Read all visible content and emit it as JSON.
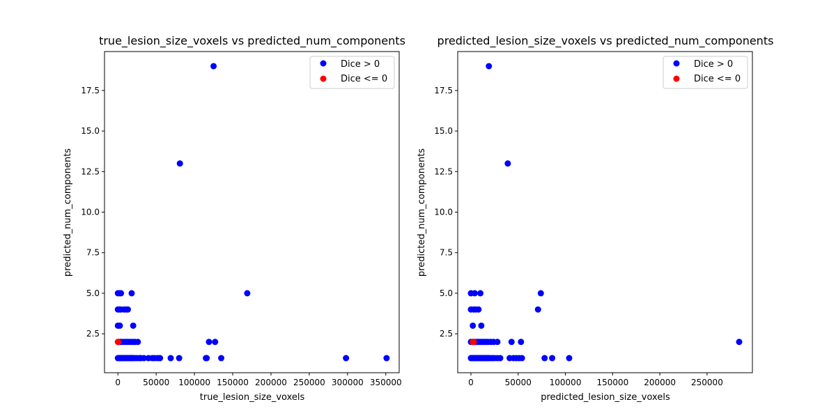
{
  "chart_data": [
    {
      "type": "scatter",
      "title": "true_lesion_size_voxels vs predicted_num_components",
      "xlabel": "true_lesion_size_voxels",
      "ylabel": "predicted_num_components",
      "xlim": [
        -17500,
        367500
      ],
      "ylim": [
        0.1,
        19.9
      ],
      "xticks": [
        0,
        50000,
        100000,
        150000,
        200000,
        250000,
        300000,
        350000
      ],
      "yticks": [
        2.5,
        5.0,
        7.5,
        10.0,
        12.5,
        15.0,
        17.5
      ],
      "legend_position": "upper right",
      "series": [
        {
          "name": "Dice > 0",
          "color": "#0000ff",
          "points": [
            [
              125000,
              19
            ],
            [
              81000,
              13
            ],
            [
              169000,
              5
            ],
            [
              0,
              5
            ],
            [
              2000,
              5
            ],
            [
              4000,
              5
            ],
            [
              18000,
              5
            ],
            [
              0,
              4
            ],
            [
              2000,
              4
            ],
            [
              4000,
              4
            ],
            [
              8000,
              4
            ],
            [
              11000,
              4
            ],
            [
              13000,
              4
            ],
            [
              0,
              3
            ],
            [
              2500,
              3
            ],
            [
              20000,
              3
            ],
            [
              500,
              2
            ],
            [
              3000,
              2
            ],
            [
              5000,
              2
            ],
            [
              8000,
              2
            ],
            [
              11000,
              2
            ],
            [
              13000,
              2
            ],
            [
              16000,
              2
            ],
            [
              19000,
              2
            ],
            [
              22000,
              2
            ],
            [
              26000,
              2
            ],
            [
              119000,
              2
            ],
            [
              127000,
              2
            ],
            [
              0,
              1
            ],
            [
              1000,
              1
            ],
            [
              2000,
              1
            ],
            [
              3000,
              1
            ],
            [
              4000,
              1
            ],
            [
              5000,
              1
            ],
            [
              6000,
              1
            ],
            [
              7000,
              1
            ],
            [
              8000,
              1
            ],
            [
              9000,
              1
            ],
            [
              10000,
              1
            ],
            [
              11000,
              1
            ],
            [
              12000,
              1
            ],
            [
              13000,
              1
            ],
            [
              14000,
              1
            ],
            [
              15000,
              1
            ],
            [
              16000,
              1
            ],
            [
              17000,
              1
            ],
            [
              18000,
              1
            ],
            [
              19000,
              1
            ],
            [
              20000,
              1
            ],
            [
              22000,
              1
            ],
            [
              25000,
              1
            ],
            [
              28000,
              1
            ],
            [
              30000,
              1
            ],
            [
              34000,
              1
            ],
            [
              40000,
              1
            ],
            [
              45000,
              1
            ],
            [
              48000,
              1
            ],
            [
              52000,
              1
            ],
            [
              55000,
              1
            ],
            [
              69000,
              1
            ],
            [
              80000,
              1
            ],
            [
              115000,
              1
            ],
            [
              116000,
              1
            ],
            [
              135000,
              1
            ],
            [
              298000,
              1
            ],
            [
              351000,
              1
            ]
          ]
        },
        {
          "name": "Dice <= 0",
          "color": "#ff0000",
          "points": [
            [
              0,
              2
            ],
            [
              500,
              2
            ]
          ]
        }
      ]
    },
    {
      "type": "scatter",
      "title": "predicted_lesion_size_voxels vs predicted_num_components",
      "xlabel": "predicted_lesion_size_voxels",
      "ylabel": "predicted_num_components",
      "xlim": [
        -14000,
        298000
      ],
      "ylim": [
        0.1,
        19.9
      ],
      "xticks": [
        0,
        50000,
        100000,
        150000,
        200000,
        250000
      ],
      "yticks": [
        2.5,
        5.0,
        7.5,
        10.0,
        12.5,
        15.0,
        17.5
      ],
      "legend_position": "upper right",
      "series": [
        {
          "name": "Dice > 0",
          "color": "#0000ff",
          "points": [
            [
              19000,
              19
            ],
            [
              39000,
              13
            ],
            [
              74000,
              5
            ],
            [
              71000,
              4
            ],
            [
              0,
              5
            ],
            [
              4000,
              5
            ],
            [
              10000,
              5
            ],
            [
              0,
              4
            ],
            [
              3000,
              4
            ],
            [
              5000,
              4
            ],
            [
              8000,
              4
            ],
            [
              2000,
              3
            ],
            [
              11000,
              3
            ],
            [
              0,
              2
            ],
            [
              2000,
              2
            ],
            [
              4000,
              2
            ],
            [
              6000,
              2
            ],
            [
              8000,
              2
            ],
            [
              10000,
              2
            ],
            [
              12000,
              2
            ],
            [
              14000,
              2
            ],
            [
              16000,
              2
            ],
            [
              18000,
              2
            ],
            [
              21000,
              2
            ],
            [
              24000,
              2
            ],
            [
              28000,
              2
            ],
            [
              43000,
              2
            ],
            [
              53000,
              2
            ],
            [
              284000,
              2
            ],
            [
              0,
              1
            ],
            [
              1000,
              1
            ],
            [
              2000,
              1
            ],
            [
              3000,
              1
            ],
            [
              4000,
              1
            ],
            [
              5000,
              1
            ],
            [
              6000,
              1
            ],
            [
              7000,
              1
            ],
            [
              8000,
              1
            ],
            [
              9000,
              1
            ],
            [
              10000,
              1
            ],
            [
              11000,
              1
            ],
            [
              12000,
              1
            ],
            [
              13000,
              1
            ],
            [
              14000,
              1
            ],
            [
              15000,
              1
            ],
            [
              16000,
              1
            ],
            [
              17000,
              1
            ],
            [
              18000,
              1
            ],
            [
              19000,
              1
            ],
            [
              21000,
              1
            ],
            [
              23000,
              1
            ],
            [
              25000,
              1
            ],
            [
              28000,
              1
            ],
            [
              31000,
              1
            ],
            [
              41000,
              1
            ],
            [
              45000,
              1
            ],
            [
              48000,
              1
            ],
            [
              51000,
              1
            ],
            [
              54000,
              1
            ],
            [
              78000,
              1
            ],
            [
              86000,
              1
            ],
            [
              104000,
              1
            ]
          ]
        },
        {
          "name": "Dice <= 0",
          "color": "#ff0000",
          "points": [
            [
              2000,
              2
            ],
            [
              3000,
              2
            ]
          ]
        }
      ]
    }
  ]
}
